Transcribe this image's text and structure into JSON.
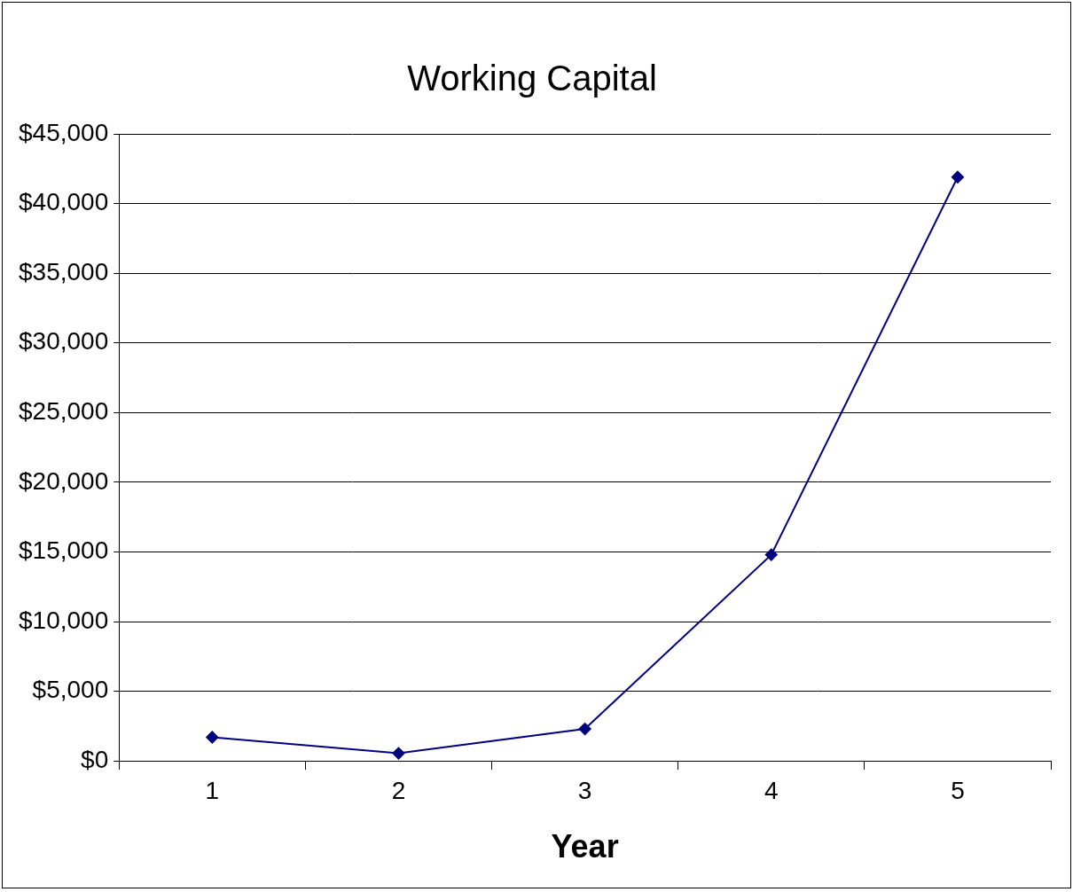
{
  "chart_data": {
    "type": "line",
    "title": "Working Capital",
    "x_label": "Year",
    "categories": [
      "1",
      "2",
      "3",
      "4",
      "5"
    ],
    "values": [
      1700,
      550,
      2300,
      14800,
      41900
    ],
    "color": "#000080",
    "marker": "diamond",
    "line_style": "solid",
    "ylim": [
      0,
      45000
    ],
    "yticks": [
      {
        "value": 0,
        "label": "$0"
      },
      {
        "value": 5000,
        "label": "$5,000"
      },
      {
        "value": 10000,
        "label": "$10,000"
      },
      {
        "value": 15000,
        "label": "$15,000"
      },
      {
        "value": 20000,
        "label": "$20,000"
      },
      {
        "value": 25000,
        "label": "$25,000"
      },
      {
        "value": 30000,
        "label": "$30,000"
      },
      {
        "value": 35000,
        "label": "$35,000"
      },
      {
        "value": 40000,
        "label": "$40,000"
      },
      {
        "value": 45000,
        "label": "$45,000"
      }
    ],
    "grid": true
  }
}
